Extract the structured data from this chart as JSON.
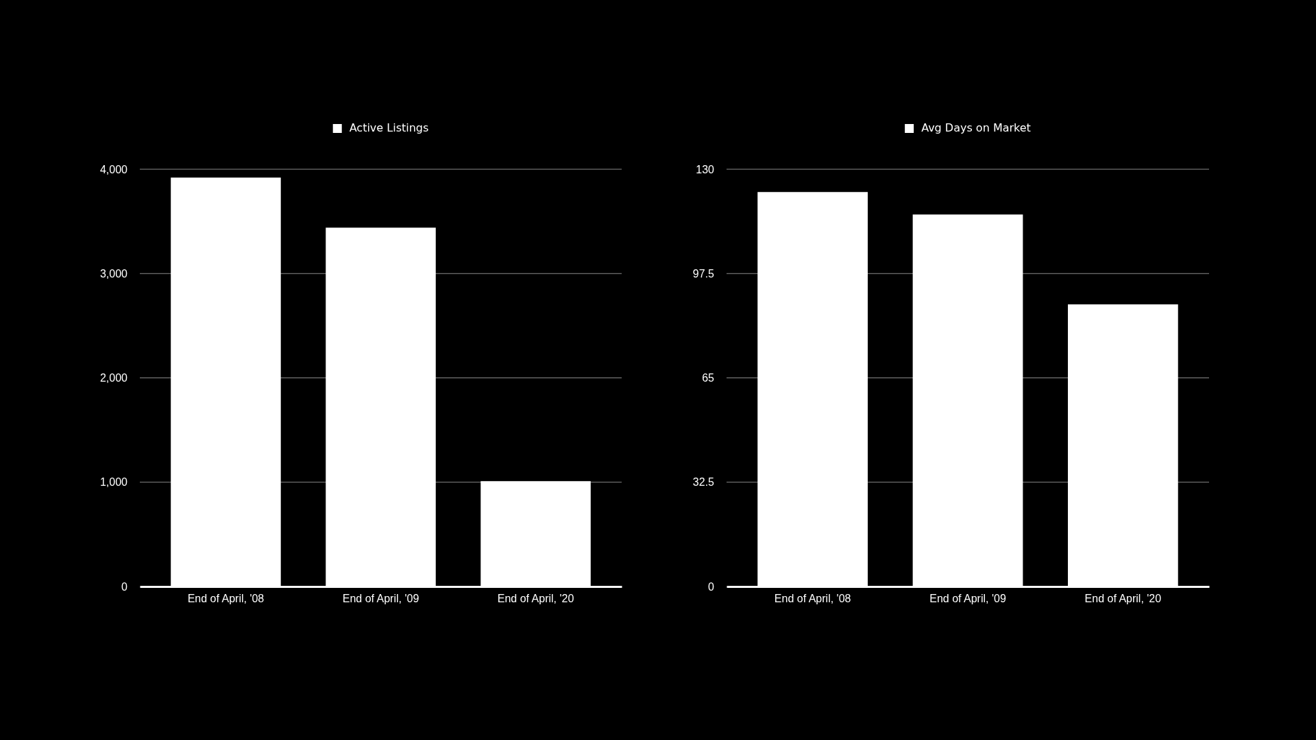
{
  "chart_data": [
    {
      "type": "bar",
      "categories": [
        "End of April, '08",
        "End of April, '09",
        "End of April, '20"
      ],
      "series": [
        {
          "name": "Active Listings",
          "color": "#ffffff",
          "values": [
            3920,
            3440,
            1010
          ]
        }
      ],
      "ylim": [
        0,
        4000
      ],
      "yticks": [
        0,
        {
          "value": 1000,
          "label": "1,000"
        },
        {
          "value": 2000,
          "label": "2,000"
        },
        {
          "value": 3000,
          "label": "3,000"
        },
        {
          "value": 4000,
          "label": "4,000"
        }
      ],
      "grid": "y",
      "legend": "top"
    },
    {
      "type": "bar",
      "categories": [
        "End of April, '08",
        "End of April, '09",
        "End of April, '20"
      ],
      "series": [
        {
          "name": "Avg Days on Market",
          "color": "#ffffff",
          "values": [
            122.9,
            115.9,
            87.9
          ]
        }
      ],
      "ylim": [
        0,
        130
      ],
      "yticks": [
        0,
        32.5,
        65,
        97.5,
        130
      ],
      "grid": "y",
      "legend": "top"
    }
  ]
}
